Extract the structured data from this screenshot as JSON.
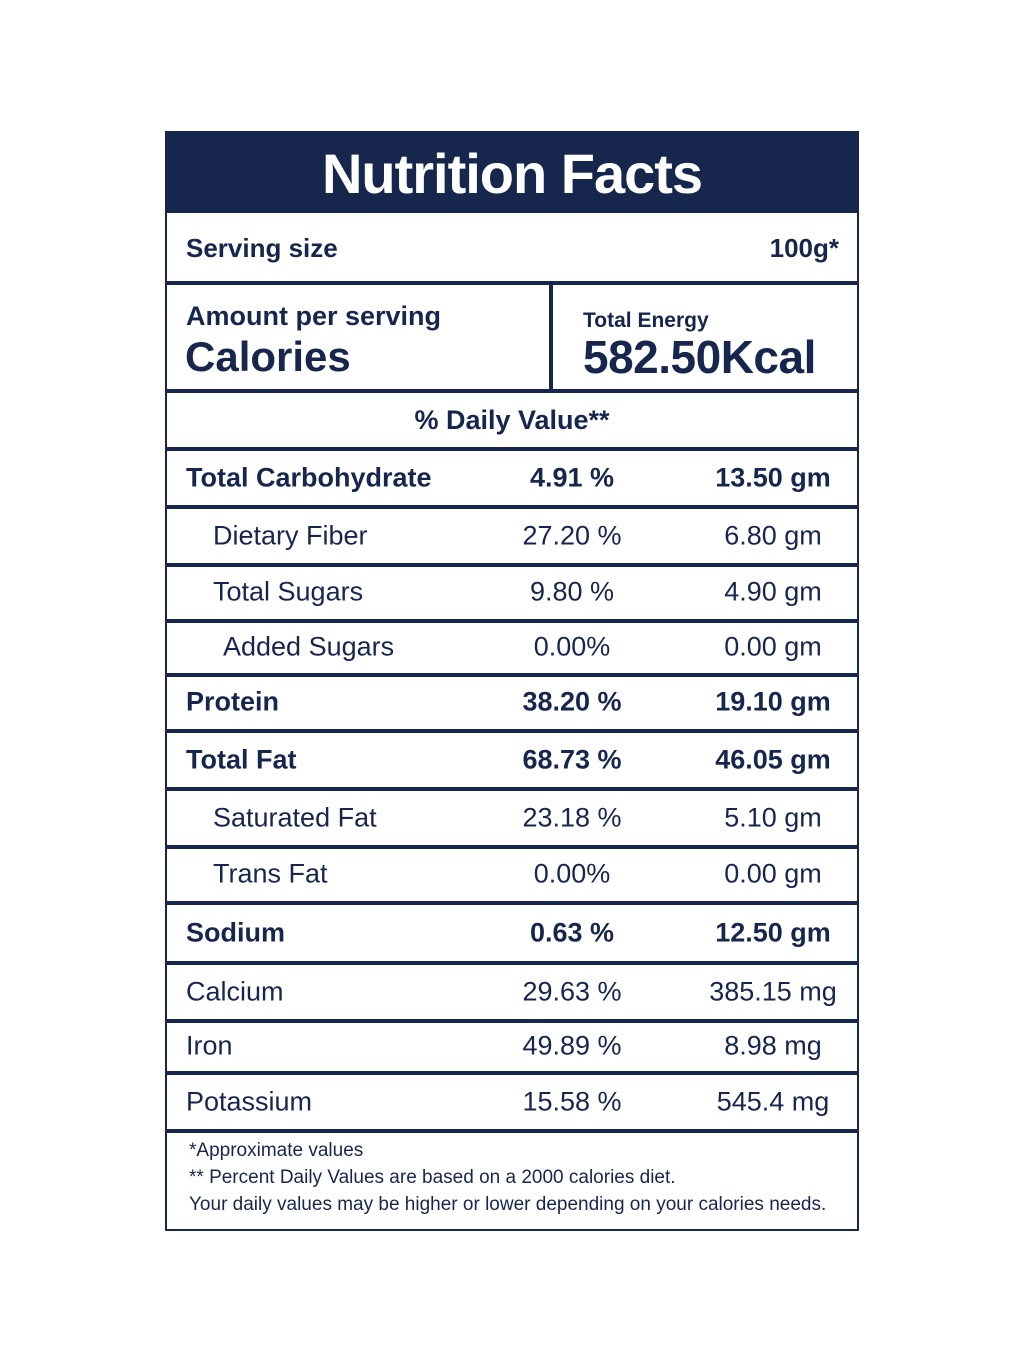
{
  "title": "Nutrition Facts",
  "serving": {
    "label": "Serving size",
    "value": "100g*"
  },
  "amount_per_serving": "Amount per serving",
  "calories_label": "Calories",
  "total_energy": {
    "label": "Total Energy",
    "value": "582.50Kcal"
  },
  "daily_value_header": "% Daily Value**",
  "nutrients": [
    {
      "name": "Total Carbohydrate",
      "percent": "4.91 %",
      "amount": "13.50 gm",
      "style": "bold",
      "indent": 0
    },
    {
      "name": "Dietary Fiber",
      "percent": "27.20 %",
      "amount": "6.80 gm",
      "style": "regular",
      "indent": 1
    },
    {
      "name": "Total Sugars",
      "percent": "9.80 %",
      "amount": "4.90 gm",
      "style": "regular",
      "indent": 1
    },
    {
      "name": "Added Sugars",
      "percent": "0.00%",
      "amount": "0.00 gm",
      "style": "regular",
      "indent": 2
    },
    {
      "name": "Protein",
      "percent": "38.20 %",
      "amount": "19.10 gm",
      "style": "bold",
      "indent": 0
    },
    {
      "name": "Total Fat",
      "percent": "68.73 %",
      "amount": "46.05 gm",
      "style": "bold",
      "indent": 0
    },
    {
      "name": "Saturated Fat",
      "percent": "23.18 %",
      "amount": "5.10 gm",
      "style": "regular",
      "indent": 1
    },
    {
      "name": "Trans Fat",
      "percent": "0.00%",
      "amount": "0.00 gm",
      "style": "regular",
      "indent": 1
    },
    {
      "name": "Sodium",
      "percent": "0.63 %",
      "amount": "12.50 gm",
      "style": "bold",
      "indent": 0
    },
    {
      "name": "Calcium",
      "percent": "29.63 %",
      "amount": "385.15 mg",
      "style": "regular",
      "indent": 0
    },
    {
      "name": "Iron",
      "percent": "49.89 %",
      "amount": "8.98 mg",
      "style": "regular",
      "indent": 0
    },
    {
      "name": "Potassium",
      "percent": "15.58 %",
      "amount": "545.4 mg",
      "style": "regular",
      "indent": 0
    }
  ],
  "footnotes": [
    "*Approximate values",
    "** Percent Daily Values are based on a 2000 calories diet.",
    "Your daily values may be higher or lower depending on your calories needs."
  ],
  "colors": {
    "navy": "#16264d",
    "background": "#ffffff"
  }
}
